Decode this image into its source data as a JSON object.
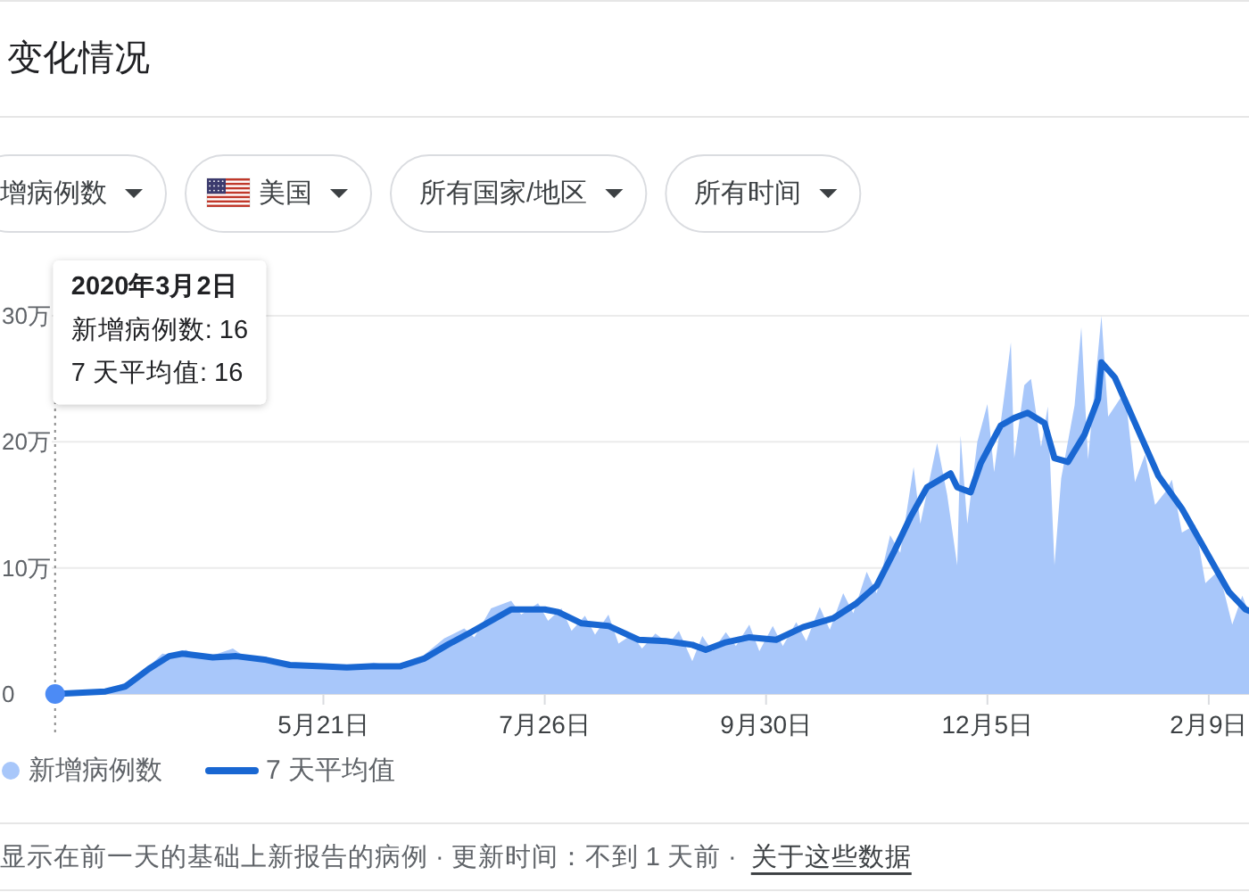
{
  "chart_data": {
    "type": "area",
    "title": "变化情况",
    "annotations": [
      "增病例数",
      "美国",
      "所有国家/地区",
      "所有时间",
      "2020年3月2日",
      "新增病例数: 16",
      "7 天平均值: 16",
      "显示在前一天的基础上新报告的病例 · 更新时间：不到 1 天前 ·",
      "关于这些数据"
    ],
    "xlim": [
      "2020-03-01",
      "2021-02-21"
    ],
    "xticks": [
      {
        "value": "2020-05-21",
        "label": "5月21日"
      },
      {
        "value": "2020-07-26",
        "label": "7月26日"
      },
      {
        "value": "2020-09-30",
        "label": "9月30日"
      },
      {
        "value": "2020-12-05",
        "label": "12月5日"
      },
      {
        "value": "2021-02-09",
        "label": "2月9日"
      }
    ],
    "ylim": [
      0,
      30
    ],
    "yticks": [
      0,
      {
        "value": 10,
        "label": "10万"
      },
      {
        "value": 20,
        "label": "20万"
      },
      {
        "value": 30,
        "label": "30万"
      }
    ],
    "grid": "y",
    "legend": "bottom",
    "ref_lines": [
      {
        "axis": "x",
        "value": "2020-03-02",
        "color": "#8a8a8a",
        "line_style": "dotted"
      }
    ],
    "series": [
      {
        "name": "新增病例数",
        "color": "#a8c7fa",
        "x": [
          "2020-03-02",
          "2020-03-16",
          "2020-03-23",
          "2020-03-30",
          "2020-04-03",
          "2020-04-07",
          "2020-04-10",
          "2020-04-15",
          "2020-04-24",
          "2020-04-29",
          "2020-05-05",
          "2020-05-12",
          "2020-05-21",
          "2020-05-28",
          "2020-06-05",
          "2020-06-14",
          "2020-06-20",
          "2020-06-26",
          "2020-07-02",
          "2020-07-05",
          "2020-07-10",
          "2020-07-16",
          "2020-07-19",
          "2020-07-24",
          "2020-07-27",
          "2020-07-31",
          "2020-08-03",
          "2020-08-07",
          "2020-08-10",
          "2020-08-14",
          "2020-08-17",
          "2020-08-21",
          "2020-08-24",
          "2020-08-28",
          "2020-09-01",
          "2020-09-04",
          "2020-09-08",
          "2020-09-11",
          "2020-09-14",
          "2020-09-18",
          "2020-09-21",
          "2020-09-25",
          "2020-09-28",
          "2020-10-02",
          "2020-10-05",
          "2020-10-09",
          "2020-10-12",
          "2020-10-16",
          "2020-10-19",
          "2020-10-23",
          "2020-10-26",
          "2020-10-30",
          "2020-11-02",
          "2020-11-06",
          "2020-11-09",
          "2020-11-13",
          "2020-11-15",
          "2020-11-20",
          "2020-11-23",
          "2020-11-26",
          "2020-11-27",
          "2020-11-29",
          "2020-12-02",
          "2020-12-05",
          "2020-12-07",
          "2020-12-10",
          "2020-12-12",
          "2020-12-13",
          "2020-12-16",
          "2020-12-18",
          "2020-12-21",
          "2020-12-23",
          "2020-12-25",
          "2020-12-27",
          "2020-12-31",
          "2021-01-02",
          "2021-01-04",
          "2021-01-08",
          "2021-01-10",
          "2021-01-13",
          "2021-01-15",
          "2021-01-18",
          "2021-01-21",
          "2021-01-24",
          "2021-01-27",
          "2021-01-29",
          "2021-02-01",
          "2021-02-05",
          "2021-02-08",
          "2021-02-12",
          "2021-02-16",
          "2021-02-19",
          "2021-02-21"
        ],
        "values": [
          0,
          0.2,
          0.9,
          2.2,
          3.2,
          3.0,
          3.5,
          2.8,
          3.6,
          2.7,
          2.5,
          2.2,
          2.4,
          1.9,
          2.5,
          2.0,
          3.1,
          4.4,
          5.2,
          4.5,
          6.8,
          7.4,
          6.3,
          7.2,
          5.8,
          6.8,
          5.0,
          6.2,
          4.7,
          6.3,
          4.0,
          4.7,
          3.6,
          4.8,
          4.0,
          5.0,
          2.6,
          4.6,
          3.4,
          4.9,
          3.8,
          5.5,
          3.4,
          5.4,
          3.8,
          5.7,
          4.2,
          6.9,
          5.1,
          8.0,
          6.4,
          9.7,
          8.0,
          12.6,
          11.2,
          18.0,
          13.5,
          19.9,
          15.8,
          10.2,
          20.5,
          13.5,
          20.0,
          23.0,
          17.6,
          23.6,
          27.9,
          18.7,
          24.5,
          25.0,
          19.6,
          22.8,
          10.2,
          17.1,
          22.9,
          29.1,
          18.6,
          30.0,
          22.0,
          23.2,
          24.0,
          16.8,
          19.0,
          15.0,
          16.0,
          17.0,
          12.8,
          13.4,
          8.8,
          9.8,
          5.5,
          7.8,
          6.4
        ]
      },
      {
        "name": "7 天平均值",
        "type": "line",
        "color": "#1967d2",
        "x": [
          "2020-03-02",
          "2020-03-17",
          "2020-03-23",
          "2020-03-30",
          "2020-04-05",
          "2020-04-09",
          "2020-04-18",
          "2020-04-25",
          "2020-05-04",
          "2020-05-11",
          "2020-05-21",
          "2020-05-28",
          "2020-06-04",
          "2020-06-13",
          "2020-06-20",
          "2020-06-27",
          "2020-07-04",
          "2020-07-10",
          "2020-07-16",
          "2020-07-26",
          "2020-07-30",
          "2020-08-06",
          "2020-08-14",
          "2020-08-23",
          "2020-08-31",
          "2020-09-08",
          "2020-09-12",
          "2020-09-18",
          "2020-09-25",
          "2020-10-03",
          "2020-10-11",
          "2020-10-20",
          "2020-10-27",
          "2020-11-02",
          "2020-11-07",
          "2020-11-12",
          "2020-11-17",
          "2020-11-24",
          "2020-11-26",
          "2020-11-30",
          "2020-12-03",
          "2020-12-09",
          "2020-12-13",
          "2020-12-17",
          "2020-12-22",
          "2020-12-25",
          "2020-12-29",
          "2021-01-03",
          "2021-01-07",
          "2021-01-08",
          "2021-01-12",
          "2021-01-18",
          "2021-01-25",
          "2021-02-01",
          "2021-02-08",
          "2021-02-15",
          "2021-02-20",
          "2021-02-21"
        ],
        "values": [
          0,
          0.2,
          0.6,
          2.0,
          3.0,
          3.2,
          2.9,
          3.0,
          2.7,
          2.3,
          2.2,
          2.1,
          2.2,
          2.2,
          2.8,
          3.9,
          4.9,
          5.8,
          6.7,
          6.7,
          6.5,
          5.6,
          5.4,
          4.3,
          4.2,
          3.9,
          3.5,
          4.1,
          4.5,
          4.3,
          5.3,
          6.0,
          7.2,
          8.6,
          11.2,
          14.0,
          16.4,
          17.5,
          16.4,
          16.0,
          18.3,
          21.3,
          21.9,
          22.3,
          21.5,
          18.7,
          18.4,
          20.6,
          23.4,
          26.3,
          25.1,
          21.5,
          17.3,
          14.7,
          11.4,
          8.1,
          6.7,
          6.6
        ]
      },
      {
        "type": "scatter",
        "color": "#4c8bf5",
        "x": [
          "2020-03-02"
        ],
        "values": [
          0
        ]
      }
    ]
  }
}
